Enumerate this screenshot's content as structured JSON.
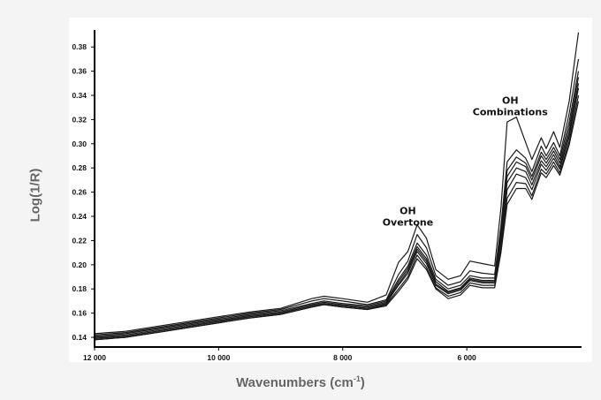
{
  "chart_data": {
    "type": "line",
    "title": "",
    "xlabel": "Wavenumbers (cm",
    "xlabel_sup": "-1",
    "xlabel_close": ")",
    "ylabel": "Log(1/R)",
    "xlim": [
      12000,
      4150
    ],
    "ylim": [
      0.132,
      0.394
    ],
    "x_reversed": true,
    "grid": false,
    "x_ticks": [
      {
        "value": 12000,
        "label": "12 000"
      },
      {
        "value": 10000,
        "label": "10 000"
      },
      {
        "value": 8000,
        "label": "8 000"
      },
      {
        "value": 6000,
        "label": "6 000"
      }
    ],
    "y_ticks": [
      {
        "value": 0.14,
        "label": "0.14"
      },
      {
        "value": 0.16,
        "label": "0.16"
      },
      {
        "value": 0.18,
        "label": "0.18"
      },
      {
        "value": 0.2,
        "label": "0.20"
      },
      {
        "value": 0.22,
        "label": "0.22"
      },
      {
        "value": 0.24,
        "label": "0.24"
      },
      {
        "value": 0.26,
        "label": "0.26"
      },
      {
        "value": 0.28,
        "label": "0.28"
      },
      {
        "value": 0.3,
        "label": "0.30"
      },
      {
        "value": 0.32,
        "label": "0.32"
      },
      {
        "value": 0.34,
        "label": "0.34"
      },
      {
        "value": 0.36,
        "label": "0.36"
      },
      {
        "value": 0.38,
        "label": "0.38"
      }
    ],
    "annotations": [
      {
        "lines": [
          "OH",
          "Overtone"
        ],
        "x": 6950,
        "y": 0.242
      },
      {
        "lines": [
          "OH",
          "Combinations"
        ],
        "x": 5300,
        "y": 0.333
      }
    ],
    "series": [
      {
        "values": [
          [
            12000,
            0.143
          ],
          [
            11500,
            0.145
          ],
          [
            11000,
            0.149
          ],
          [
            10500,
            0.153
          ],
          [
            10000,
            0.157
          ],
          [
            9500,
            0.161
          ],
          [
            9000,
            0.164
          ],
          [
            8500,
            0.172
          ],
          [
            8300,
            0.174
          ],
          [
            8000,
            0.172
          ],
          [
            7600,
            0.169
          ],
          [
            7300,
            0.175
          ],
          [
            7100,
            0.202
          ],
          [
            6950,
            0.211
          ],
          [
            6800,
            0.233
          ],
          [
            6650,
            0.222
          ],
          [
            6500,
            0.196
          ],
          [
            6300,
            0.188
          ],
          [
            6100,
            0.191
          ],
          [
            5950,
            0.203
          ],
          [
            5750,
            0.201
          ],
          [
            5550,
            0.199
          ],
          [
            5450,
            0.247
          ],
          [
            5350,
            0.318
          ],
          [
            5200,
            0.322
          ],
          [
            5050,
            0.301
          ],
          [
            4950,
            0.287
          ],
          [
            4800,
            0.305
          ],
          [
            4720,
            0.296
          ],
          [
            4600,
            0.31
          ],
          [
            4500,
            0.297
          ],
          [
            4350,
            0.335
          ],
          [
            4200,
            0.392
          ]
        ]
      },
      {
        "values": [
          [
            12000,
            0.142
          ],
          [
            11500,
            0.144
          ],
          [
            11000,
            0.148
          ],
          [
            10500,
            0.152
          ],
          [
            10000,
            0.156
          ],
          [
            9500,
            0.16
          ],
          [
            9000,
            0.163
          ],
          [
            8500,
            0.17
          ],
          [
            8300,
            0.172
          ],
          [
            8000,
            0.17
          ],
          [
            7600,
            0.167
          ],
          [
            7300,
            0.171
          ],
          [
            7100,
            0.192
          ],
          [
            6950,
            0.203
          ],
          [
            6800,
            0.225
          ],
          [
            6650,
            0.214
          ],
          [
            6500,
            0.191
          ],
          [
            6300,
            0.183
          ],
          [
            6100,
            0.186
          ],
          [
            5950,
            0.195
          ],
          [
            5750,
            0.193
          ],
          [
            5550,
            0.192
          ],
          [
            5450,
            0.232
          ],
          [
            5350,
            0.285
          ],
          [
            5200,
            0.295
          ],
          [
            5050,
            0.288
          ],
          [
            4950,
            0.277
          ],
          [
            4800,
            0.298
          ],
          [
            4720,
            0.29
          ],
          [
            4600,
            0.301
          ],
          [
            4500,
            0.29
          ],
          [
            4350,
            0.325
          ],
          [
            4200,
            0.37
          ]
        ]
      },
      {
        "values": [
          [
            12000,
            0.141
          ],
          [
            11500,
            0.143
          ],
          [
            11000,
            0.147
          ],
          [
            10500,
            0.151
          ],
          [
            10000,
            0.155
          ],
          [
            9500,
            0.159
          ],
          [
            9000,
            0.162
          ],
          [
            8500,
            0.168
          ],
          [
            8300,
            0.17
          ],
          [
            8000,
            0.168
          ],
          [
            7600,
            0.166
          ],
          [
            7300,
            0.17
          ],
          [
            7100,
            0.188
          ],
          [
            6950,
            0.199
          ],
          [
            6800,
            0.218
          ],
          [
            6650,
            0.208
          ],
          [
            6500,
            0.188
          ],
          [
            6300,
            0.18
          ],
          [
            6100,
            0.183
          ],
          [
            5950,
            0.191
          ],
          [
            5750,
            0.189
          ],
          [
            5550,
            0.189
          ],
          [
            5450,
            0.228
          ],
          [
            5350,
            0.278
          ],
          [
            5200,
            0.289
          ],
          [
            5050,
            0.284
          ],
          [
            4950,
            0.273
          ],
          [
            4800,
            0.293
          ],
          [
            4720,
            0.287
          ],
          [
            4600,
            0.297
          ],
          [
            4500,
            0.287
          ],
          [
            4350,
            0.318
          ],
          [
            4200,
            0.36
          ]
        ]
      },
      {
        "values": [
          [
            12000,
            0.14
          ],
          [
            11500,
            0.142
          ],
          [
            11000,
            0.146
          ],
          [
            10500,
            0.15
          ],
          [
            10000,
            0.154
          ],
          [
            9500,
            0.158
          ],
          [
            9000,
            0.161
          ],
          [
            8500,
            0.167
          ],
          [
            8300,
            0.169
          ],
          [
            8000,
            0.167
          ],
          [
            7600,
            0.165
          ],
          [
            7300,
            0.169
          ],
          [
            7100,
            0.186
          ],
          [
            6950,
            0.197
          ],
          [
            6800,
            0.215
          ],
          [
            6650,
            0.205
          ],
          [
            6500,
            0.186
          ],
          [
            6300,
            0.178
          ],
          [
            6100,
            0.181
          ],
          [
            5950,
            0.189
          ],
          [
            5750,
            0.187
          ],
          [
            5550,
            0.187
          ],
          [
            5450,
            0.225
          ],
          [
            5350,
            0.273
          ],
          [
            5200,
            0.285
          ],
          [
            5050,
            0.281
          ],
          [
            4950,
            0.27
          ],
          [
            4800,
            0.29
          ],
          [
            4720,
            0.284
          ],
          [
            4600,
            0.294
          ],
          [
            4500,
            0.284
          ],
          [
            4350,
            0.313
          ],
          [
            4200,
            0.355
          ]
        ]
      },
      {
        "values": [
          [
            12000,
            0.139
          ],
          [
            11500,
            0.141
          ],
          [
            11000,
            0.145
          ],
          [
            10500,
            0.149
          ],
          [
            10000,
            0.153
          ],
          [
            9500,
            0.157
          ],
          [
            9000,
            0.16
          ],
          [
            8500,
            0.166
          ],
          [
            8300,
            0.168
          ],
          [
            8000,
            0.166
          ],
          [
            7600,
            0.164
          ],
          [
            7300,
            0.168
          ],
          [
            7100,
            0.184
          ],
          [
            6950,
            0.195
          ],
          [
            6800,
            0.213
          ],
          [
            6650,
            0.203
          ],
          [
            6500,
            0.184
          ],
          [
            6300,
            0.177
          ],
          [
            6100,
            0.18
          ],
          [
            5950,
            0.188
          ],
          [
            5750,
            0.186
          ],
          [
            5550,
            0.186
          ],
          [
            5450,
            0.222
          ],
          [
            5350,
            0.268
          ],
          [
            5200,
            0.28
          ],
          [
            5050,
            0.277
          ],
          [
            4950,
            0.266
          ],
          [
            4800,
            0.286
          ],
          [
            4720,
            0.281
          ],
          [
            4600,
            0.291
          ],
          [
            4500,
            0.281
          ],
          [
            4350,
            0.309
          ],
          [
            4200,
            0.35
          ]
        ]
      },
      {
        "values": [
          [
            12000,
            0.139
          ],
          [
            11500,
            0.141
          ],
          [
            11000,
            0.145
          ],
          [
            10500,
            0.149
          ],
          [
            10000,
            0.153
          ],
          [
            9500,
            0.157
          ],
          [
            9000,
            0.16
          ],
          [
            8500,
            0.166
          ],
          [
            8300,
            0.168
          ],
          [
            8000,
            0.166
          ],
          [
            7600,
            0.164
          ],
          [
            7300,
            0.168
          ],
          [
            7100,
            0.183
          ],
          [
            6950,
            0.193
          ],
          [
            6800,
            0.211
          ],
          [
            6650,
            0.201
          ],
          [
            6500,
            0.183
          ],
          [
            6300,
            0.176
          ],
          [
            6100,
            0.179
          ],
          [
            5950,
            0.187
          ],
          [
            5750,
            0.185
          ],
          [
            5550,
            0.185
          ],
          [
            5450,
            0.218
          ],
          [
            5350,
            0.262
          ],
          [
            5200,
            0.275
          ],
          [
            5050,
            0.272
          ],
          [
            4950,
            0.262
          ],
          [
            4800,
            0.283
          ],
          [
            4720,
            0.278
          ],
          [
            4600,
            0.288
          ],
          [
            4500,
            0.279
          ],
          [
            4350,
            0.306
          ],
          [
            4200,
            0.346
          ]
        ]
      },
      {
        "values": [
          [
            12000,
            0.138
          ],
          [
            11500,
            0.14
          ],
          [
            11000,
            0.144
          ],
          [
            10500,
            0.148
          ],
          [
            10000,
            0.152
          ],
          [
            9500,
            0.156
          ],
          [
            9000,
            0.159
          ],
          [
            8500,
            0.165
          ],
          [
            8300,
            0.167
          ],
          [
            8000,
            0.165
          ],
          [
            7600,
            0.163
          ],
          [
            7300,
            0.167
          ],
          [
            7100,
            0.18
          ],
          [
            6950,
            0.19
          ],
          [
            6800,
            0.208
          ],
          [
            6650,
            0.198
          ],
          [
            6500,
            0.181
          ],
          [
            6300,
            0.174
          ],
          [
            6100,
            0.177
          ],
          [
            5950,
            0.185
          ],
          [
            5750,
            0.183
          ],
          [
            5550,
            0.183
          ],
          [
            5450,
            0.214
          ],
          [
            5350,
            0.255
          ],
          [
            5200,
            0.268
          ],
          [
            5050,
            0.267
          ],
          [
            4950,
            0.257
          ],
          [
            4800,
            0.279
          ],
          [
            4720,
            0.275
          ],
          [
            4600,
            0.285
          ],
          [
            4500,
            0.276
          ],
          [
            4350,
            0.302
          ],
          [
            4200,
            0.34
          ]
        ]
      },
      {
        "values": [
          [
            12000,
            0.138
          ],
          [
            11500,
            0.14
          ],
          [
            11000,
            0.144
          ],
          [
            10500,
            0.148
          ],
          [
            10000,
            0.152
          ],
          [
            9500,
            0.156
          ],
          [
            9000,
            0.159
          ],
          [
            8500,
            0.165
          ],
          [
            8300,
            0.167
          ],
          [
            8000,
            0.165
          ],
          [
            7600,
            0.163
          ],
          [
            7300,
            0.166
          ],
          [
            7100,
            0.178
          ],
          [
            6950,
            0.188
          ],
          [
            6800,
            0.205
          ],
          [
            6650,
            0.196
          ],
          [
            6500,
            0.18
          ],
          [
            6300,
            0.172
          ],
          [
            6100,
            0.175
          ],
          [
            5950,
            0.183
          ],
          [
            5750,
            0.181
          ],
          [
            5550,
            0.181
          ],
          [
            5450,
            0.21
          ],
          [
            5350,
            0.25
          ],
          [
            5200,
            0.263
          ],
          [
            5050,
            0.263
          ],
          [
            4950,
            0.254
          ],
          [
            4800,
            0.276
          ],
          [
            4720,
            0.272
          ],
          [
            4600,
            0.282
          ],
          [
            4500,
            0.274
          ],
          [
            4350,
            0.299
          ],
          [
            4200,
            0.335
          ]
        ]
      }
    ]
  }
}
